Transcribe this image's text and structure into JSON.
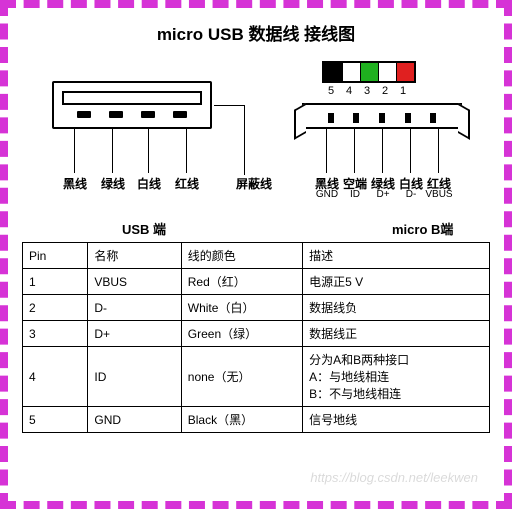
{
  "title": "micro USB 数据线 接线图",
  "usb_a": {
    "label": "USB 端",
    "pins": [
      {
        "label": "黑线"
      },
      {
        "label": "绿线"
      },
      {
        "label": "白线"
      },
      {
        "label": "红线"
      }
    ]
  },
  "shield_label": "屏蔽线",
  "micro_b": {
    "label": "micro B端",
    "color_block": [
      {
        "num": "5",
        "color": "#000000"
      },
      {
        "num": "4",
        "color": "#ffffff"
      },
      {
        "num": "3",
        "color": "#1fb01f"
      },
      {
        "num": "2",
        "color": "#ffffff"
      },
      {
        "num": "1",
        "color": "#e02020"
      }
    ],
    "pins": [
      {
        "label": "黑线",
        "sub": "GND"
      },
      {
        "label": "空端",
        "sub": "ID"
      },
      {
        "label": "绿线",
        "sub": "D+"
      },
      {
        "label": "白线",
        "sub": "D-"
      },
      {
        "label": "红线",
        "sub": "VBUS"
      }
    ]
  },
  "table": {
    "headers": [
      "Pin",
      "名称",
      "线的颜色",
      "描述"
    ],
    "col_widths": [
      "14%",
      "20%",
      "26%",
      "40%"
    ],
    "rows": [
      [
        "1",
        "VBUS",
        "Red（红）",
        "电源正5 V"
      ],
      [
        "2",
        "D-",
        "White（白）",
        "数据线负"
      ],
      [
        "3",
        "D+",
        "Green（绿）",
        "数据线正"
      ],
      [
        "4",
        "ID",
        "none（无）",
        "分为A和B两种接口\nA：与地线相连\nB：不与地线相连"
      ],
      [
        "5",
        "GND",
        "Black（黑）",
        "信号地线"
      ]
    ]
  },
  "watermark": "https://blog.csdn.net/leekwen",
  "style": {
    "frame_border_color": "#d633d6",
    "background": "#ffffff",
    "text_color": "#000000",
    "title_fontsize": 17,
    "label_fontsize": 12,
    "table_fontsize": 12
  }
}
